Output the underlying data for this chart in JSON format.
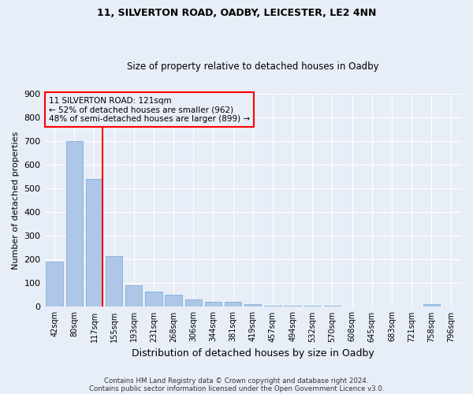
{
  "title1": "11, SILVERTON ROAD, OADBY, LEICESTER, LE2 4NN",
  "title2": "Size of property relative to detached houses in Oadby",
  "xlabel": "Distribution of detached houses by size in Oadby",
  "ylabel": "Number of detached properties",
  "footer1": "Contains HM Land Registry data © Crown copyright and database right 2024.",
  "footer2": "Contains public sector information licensed under the Open Government Licence v3.0.",
  "annotation_title": "11 SILVERTON ROAD: 121sqm",
  "annotation_line2": "← 52% of detached houses are smaller (962)",
  "annotation_line3": "48% of semi-detached houses are larger (899) →",
  "bar_color": "#aec6e8",
  "bar_edge_color": "#6fa8d6",
  "vline_color": "red",
  "annotation_box_color": "red",
  "background_color": "#e8eef8",
  "categories": [
    "42sqm",
    "80sqm",
    "117sqm",
    "155sqm",
    "193sqm",
    "231sqm",
    "268sqm",
    "306sqm",
    "344sqm",
    "381sqm",
    "419sqm",
    "457sqm",
    "494sqm",
    "532sqm",
    "570sqm",
    "608sqm",
    "645sqm",
    "683sqm",
    "721sqm",
    "758sqm",
    "796sqm"
  ],
  "values": [
    190,
    700,
    540,
    215,
    90,
    65,
    50,
    30,
    20,
    20,
    10,
    5,
    5,
    5,
    5,
    2,
    2,
    2,
    2,
    10,
    2
  ],
  "ylim": [
    0,
    900
  ],
  "yticks": [
    0,
    100,
    200,
    300,
    400,
    500,
    600,
    700,
    800,
    900
  ],
  "vline_x_index": 2,
  "figsize": [
    6.0,
    5.0
  ],
  "dpi": 100
}
